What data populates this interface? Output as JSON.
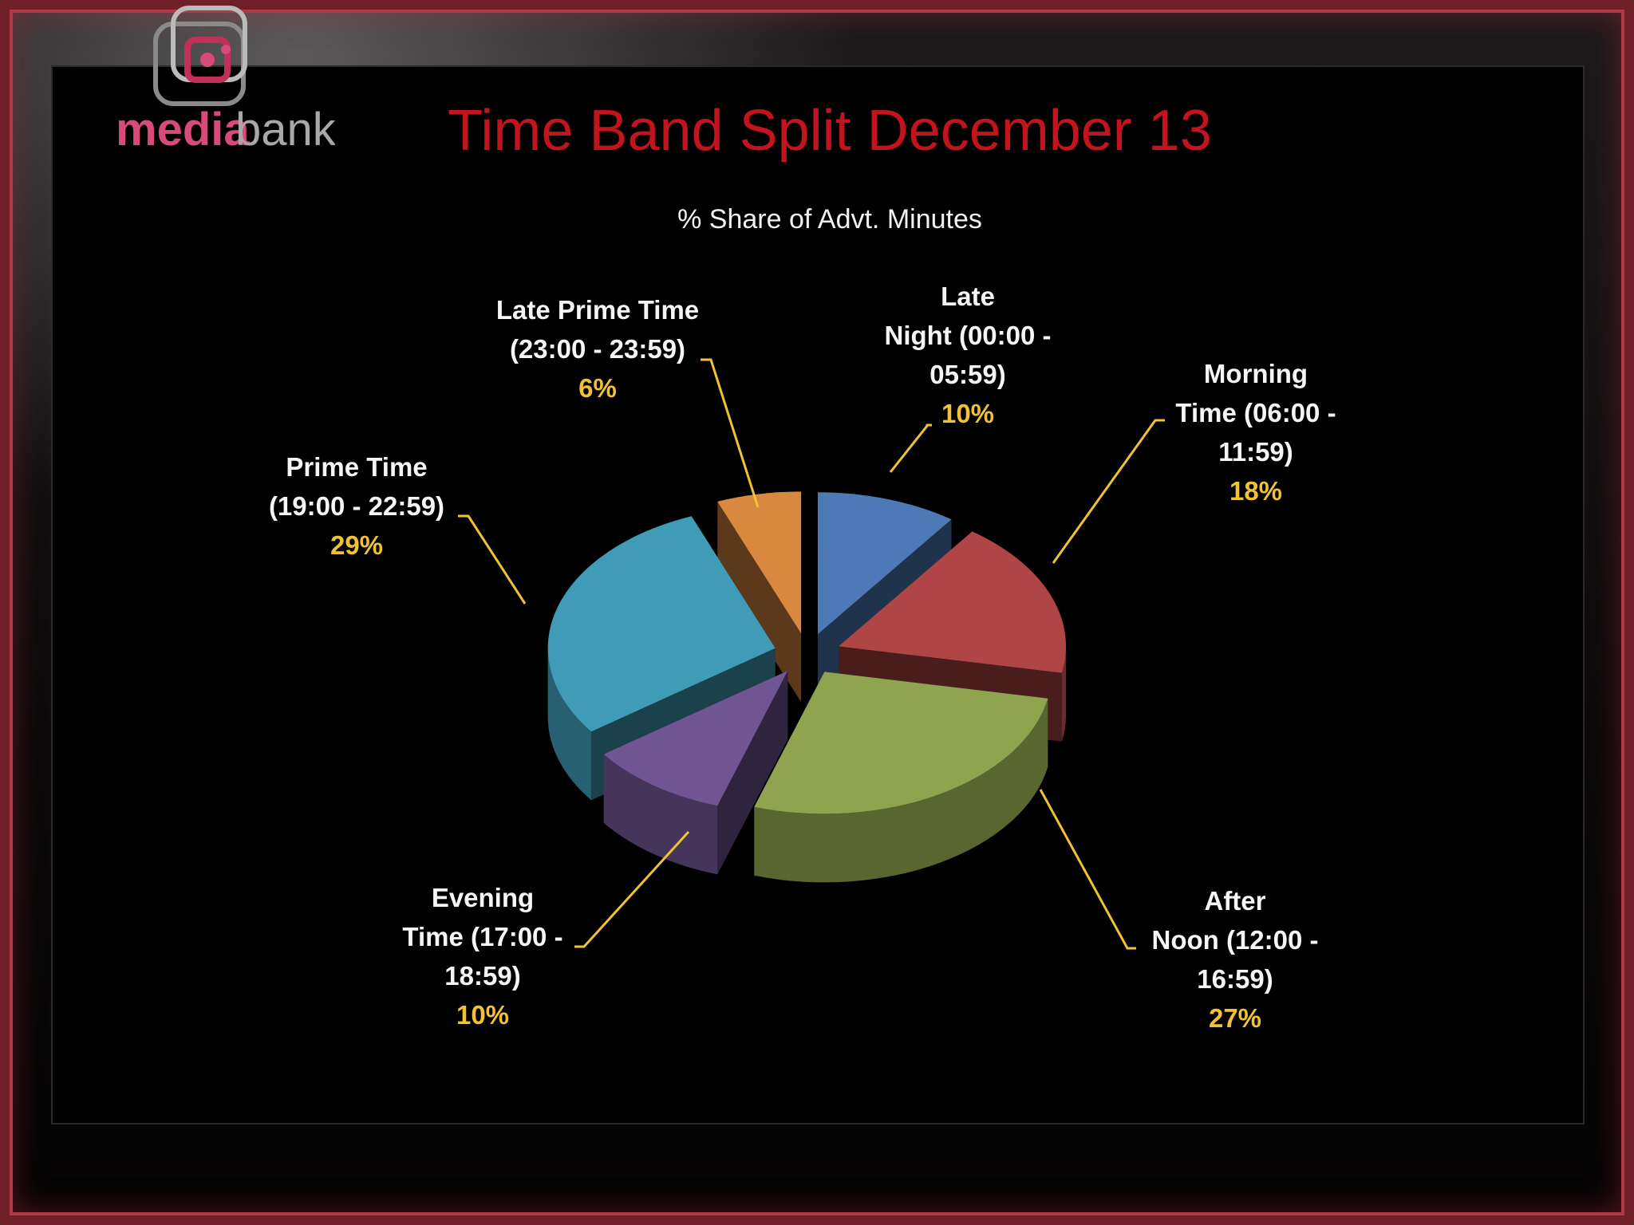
{
  "chart_data": {
    "type": "pie",
    "title": "Time Band Split December 13",
    "subtitle": "% Share of Advt. Minutes",
    "style": "3d-exploded",
    "slices": [
      {
        "label": [
          "Late",
          "Night (00:00 -",
          "05:59)"
        ],
        "value": 10,
        "value_label": "10%",
        "color": "#4d7ab6"
      },
      {
        "label": [
          "Morning",
          "Time (06:00 -",
          "11:59)"
        ],
        "value": 18,
        "value_label": "18%",
        "color": "#b04546"
      },
      {
        "label": [
          "After",
          "Noon (12:00 -",
          "16:59)"
        ],
        "value": 27,
        "value_label": "27%",
        "color": "#8fa44e"
      },
      {
        "label": [
          "Evening",
          "Time (17:00 -",
          "18:59)"
        ],
        "value": 10,
        "value_label": "10%",
        "color": "#715592"
      },
      {
        "label": [
          "Prime Time",
          "(19:00 - 22:59)"
        ],
        "value": 29,
        "value_label": "29%",
        "color": "#3f9bb6"
      },
      {
        "label": [
          "Late Prime Time",
          "(23:00 - 23:59)"
        ],
        "value": 6,
        "value_label": "6%",
        "color": "#d9883f"
      }
    ]
  },
  "logo": {
    "name": "mediabank-logo",
    "text_media": "media",
    "text_bank": "bank"
  }
}
